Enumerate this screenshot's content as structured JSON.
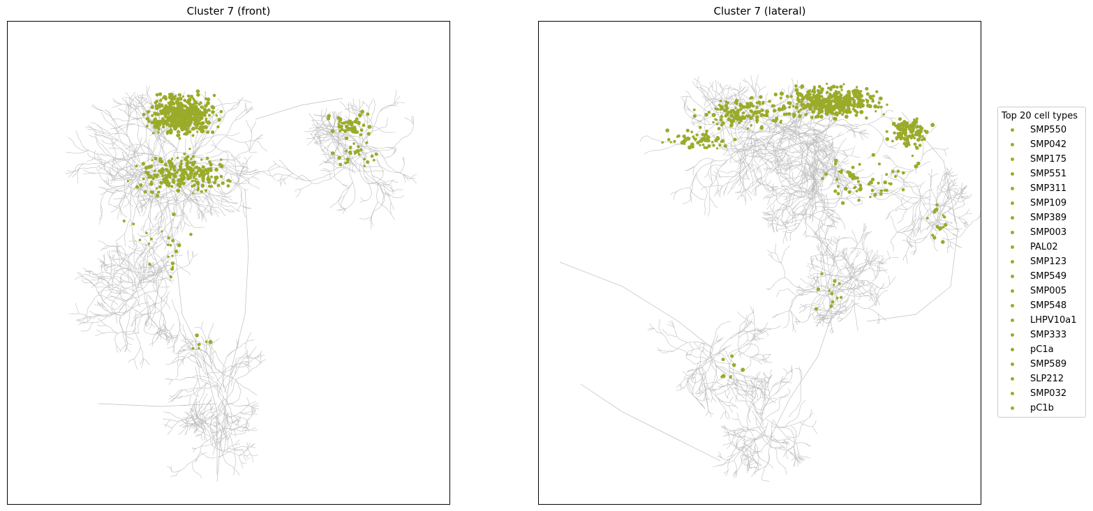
{
  "chart_data": [
    {
      "type": "scatter",
      "title": "Cluster 7 (front)",
      "xlabel": "",
      "ylabel": "",
      "axis_ticks": "none",
      "grid": false,
      "skeleton_color": "#bdbdbd",
      "point_color": "#9aab2a"
    },
    {
      "type": "scatter",
      "title": "Cluster 7 (lateral)",
      "xlabel": "",
      "ylabel": "",
      "axis_ticks": "none",
      "grid": false,
      "skeleton_color": "#bdbdbd",
      "point_color": "#9aab2a"
    }
  ],
  "legend": {
    "title": "Top 20 cell types",
    "placement": "right",
    "items": [
      {
        "label": "SMP550",
        "color": "#9aab2a"
      },
      {
        "label": "SMP042",
        "color": "#9aab2a"
      },
      {
        "label": "SMP175",
        "color": "#9aab2a"
      },
      {
        "label": "SMP551",
        "color": "#9aab2a"
      },
      {
        "label": "SMP311",
        "color": "#9aab2a"
      },
      {
        "label": "SMP109",
        "color": "#9aab2a"
      },
      {
        "label": "SMP389",
        "color": "#9aab2a"
      },
      {
        "label": "SMP003",
        "color": "#9aab2a"
      },
      {
        "label": "PAL02",
        "color": "#9aab2a"
      },
      {
        "label": "SMP123",
        "color": "#9aab2a"
      },
      {
        "label": "SMP549",
        "color": "#9aab2a"
      },
      {
        "label": "SMP005",
        "color": "#9aab2a"
      },
      {
        "label": "SMP548",
        "color": "#9aab2a"
      },
      {
        "label": "LHPV10a1",
        "color": "#9aab2a"
      },
      {
        "label": "SMP333",
        "color": "#9aab2a"
      },
      {
        "label": "pC1a",
        "color": "#9aab2a"
      },
      {
        "label": "SMP589",
        "color": "#9aab2a"
      },
      {
        "label": "SLP212",
        "color": "#9aab2a"
      },
      {
        "label": "SMP032",
        "color": "#9aab2a"
      },
      {
        "label": "pC1b",
        "color": "#9aab2a"
      }
    ]
  }
}
